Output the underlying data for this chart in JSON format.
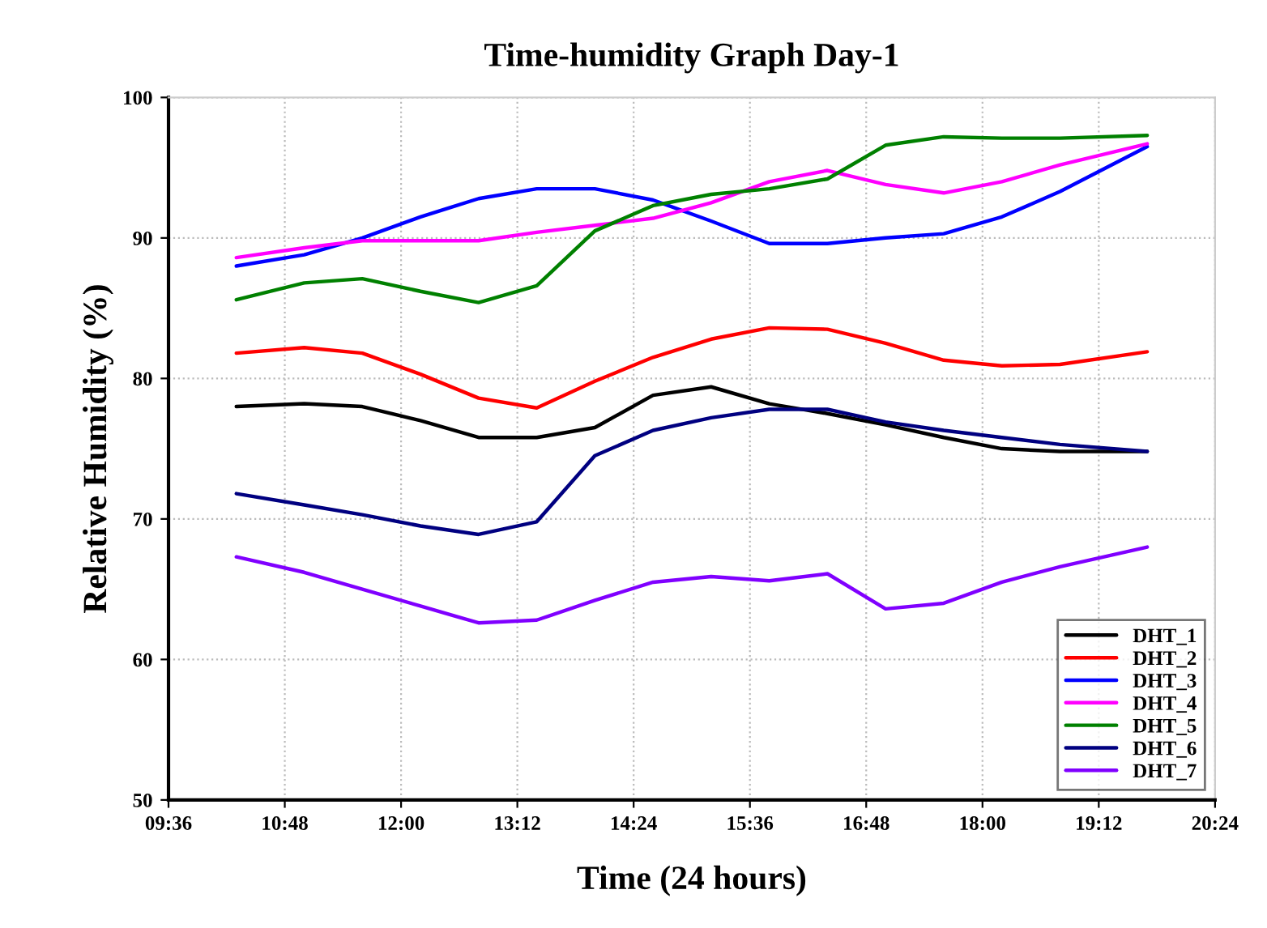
{
  "chart_data": {
    "type": "line",
    "title": "Time-humidity Graph Day-1",
    "xlabel": "Time (24 hours)",
    "ylabel": "Relative Humidity (%)",
    "x": [
      10.3,
      11.0,
      11.6,
      12.2,
      12.8,
      13.4,
      14.0,
      14.6,
      15.2,
      15.8,
      16.4,
      17.0,
      17.6,
      18.2,
      18.8,
      19.7
    ],
    "series": [
      {
        "name": "DHT_1",
        "color": "#000000",
        "values": [
          78.0,
          78.2,
          78.0,
          77.0,
          75.8,
          75.8,
          76.5,
          78.8,
          79.4,
          78.2,
          77.5,
          76.7,
          75.8,
          75.0,
          74.8,
          74.8
        ]
      },
      {
        "name": "DHT_2",
        "color": "#ff0000",
        "values": [
          81.8,
          82.2,
          81.8,
          80.3,
          78.6,
          77.9,
          79.8,
          81.5,
          82.8,
          83.6,
          83.5,
          82.5,
          81.3,
          80.9,
          81.0,
          81.9
        ]
      },
      {
        "name": "DHT_3",
        "color": "#0000ff",
        "values": [
          88.0,
          88.8,
          90.0,
          91.5,
          92.8,
          93.5,
          93.5,
          92.7,
          91.2,
          89.6,
          89.6,
          90.0,
          90.3,
          91.5,
          93.3,
          96.5
        ]
      },
      {
        "name": "DHT_4",
        "color": "#ff00ff",
        "values": [
          88.6,
          89.3,
          89.8,
          89.8,
          89.8,
          90.4,
          90.9,
          91.4,
          92.5,
          94.0,
          94.8,
          93.8,
          93.2,
          94.0,
          95.2,
          96.7
        ]
      },
      {
        "name": "DHT_5",
        "color": "#008000",
        "values": [
          85.6,
          86.8,
          87.1,
          86.2,
          85.4,
          86.6,
          90.5,
          92.3,
          93.1,
          93.5,
          94.2,
          96.6,
          97.2,
          97.1,
          97.1,
          97.3
        ]
      },
      {
        "name": "DHT_6",
        "color": "#000080",
        "values": [
          71.8,
          71.0,
          70.3,
          69.5,
          68.9,
          69.8,
          74.5,
          76.3,
          77.2,
          77.8,
          77.8,
          76.9,
          76.3,
          75.8,
          75.3,
          74.8
        ]
      },
      {
        "name": "DHT_7",
        "color": "#8000ff",
        "values": [
          67.3,
          66.2,
          65.0,
          63.8,
          62.6,
          62.8,
          64.2,
          65.5,
          65.9,
          65.6,
          66.1,
          63.6,
          64.0,
          65.5,
          66.6,
          68.0
        ]
      }
    ],
    "xlim": [
      9.6,
      20.4
    ],
    "xticks": [
      {
        "value": 9.6,
        "label": "09:36"
      },
      {
        "value": 10.8,
        "label": "10:48"
      },
      {
        "value": 12,
        "label": "12:00"
      },
      {
        "value": 13.2,
        "label": "13:12"
      },
      {
        "value": 14.4,
        "label": "14:24"
      },
      {
        "value": 15.6,
        "label": "15:36"
      },
      {
        "value": 16.8,
        "label": "16:48"
      },
      {
        "value": 18,
        "label": "18:00"
      },
      {
        "value": 19.2,
        "label": "19:12"
      },
      {
        "value": 20.4,
        "label": "20:24"
      }
    ],
    "ylim": [
      50,
      100
    ],
    "yticks": [
      50,
      60,
      70,
      80,
      90,
      100
    ],
    "grid": true,
    "legend": "bottom right",
    "marker": "none",
    "line_style": "solid"
  }
}
